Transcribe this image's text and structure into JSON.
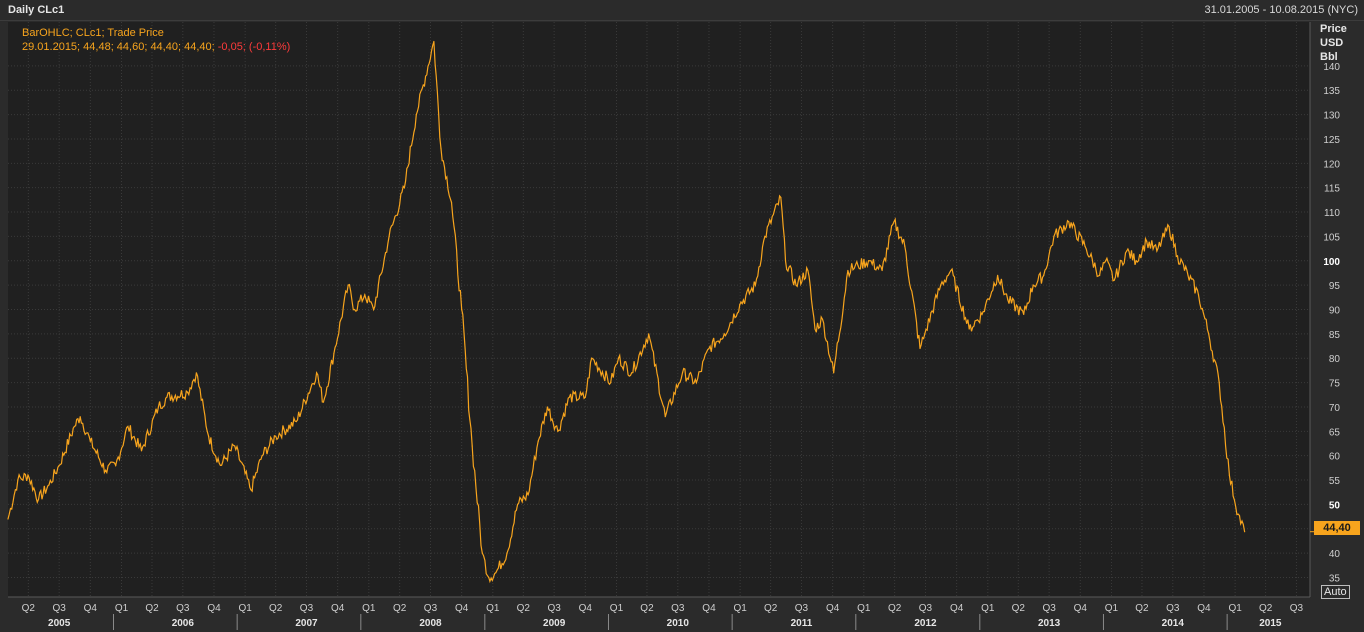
{
  "header": {
    "title": "Daily CLc1",
    "date_range": "31.01.2005 - 10.08.2015 (NYC)"
  },
  "legend": {
    "series_line": "BarOHLC; CLc1; Trade Price",
    "values_line_main": "29.01.2015; 44,48; 44,60; 44,40; 44,40; ",
    "values_line_change": "-0,05; (-0,11%)"
  },
  "axis": {
    "unit_line1": "Price",
    "unit_line2": "USD",
    "unit_line3": "Bbl",
    "auto_label": "Auto",
    "last_price_label": "44,40"
  },
  "colors": {
    "series": "#f7a41d",
    "negative": "#ff3b3b",
    "background": "#202020",
    "grid": "#3a3a3a"
  },
  "chart_data": {
    "type": "line",
    "title": "Daily CLc1",
    "ylabel": "Price USD Bbl",
    "ylim": [
      31,
      149
    ],
    "xlim": [
      "2005-01-31",
      "2015-08-10"
    ],
    "y_ticks": [
      35,
      40,
      45,
      50,
      55,
      60,
      65,
      70,
      75,
      80,
      85,
      90,
      95,
      100,
      105,
      110,
      115,
      120,
      125,
      130,
      135,
      140
    ],
    "y_ticks_bold": [
      50,
      100
    ],
    "quarter_ticks": [
      {
        "label": "Q2",
        "date": "2005-04-01"
      },
      {
        "label": "Q3",
        "date": "2005-07-01"
      },
      {
        "label": "Q4",
        "date": "2005-10-01"
      },
      {
        "label": "Q1",
        "date": "2006-01-01"
      },
      {
        "label": "Q2",
        "date": "2006-04-01"
      },
      {
        "label": "Q3",
        "date": "2006-07-01"
      },
      {
        "label": "Q4",
        "date": "2006-10-01"
      },
      {
        "label": "Q1",
        "date": "2007-01-01"
      },
      {
        "label": "Q2",
        "date": "2007-04-01"
      },
      {
        "label": "Q3",
        "date": "2007-07-01"
      },
      {
        "label": "Q4",
        "date": "2007-10-01"
      },
      {
        "label": "Q1",
        "date": "2008-01-01"
      },
      {
        "label": "Q2",
        "date": "2008-04-01"
      },
      {
        "label": "Q3",
        "date": "2008-07-01"
      },
      {
        "label": "Q4",
        "date": "2008-10-01"
      },
      {
        "label": "Q1",
        "date": "2009-01-01"
      },
      {
        "label": "Q2",
        "date": "2009-04-01"
      },
      {
        "label": "Q3",
        "date": "2009-07-01"
      },
      {
        "label": "Q4",
        "date": "2009-10-01"
      },
      {
        "label": "Q1",
        "date": "2010-01-01"
      },
      {
        "label": "Q2",
        "date": "2010-04-01"
      },
      {
        "label": "Q3",
        "date": "2010-07-01"
      },
      {
        "label": "Q4",
        "date": "2010-10-01"
      },
      {
        "label": "Q1",
        "date": "2011-01-01"
      },
      {
        "label": "Q2",
        "date": "2011-04-01"
      },
      {
        "label": "Q3",
        "date": "2011-07-01"
      },
      {
        "label": "Q4",
        "date": "2011-10-01"
      },
      {
        "label": "Q1",
        "date": "2012-01-01"
      },
      {
        "label": "Q2",
        "date": "2012-04-01"
      },
      {
        "label": "Q3",
        "date": "2012-07-01"
      },
      {
        "label": "Q4",
        "date": "2012-10-01"
      },
      {
        "label": "Q1",
        "date": "2013-01-01"
      },
      {
        "label": "Q2",
        "date": "2013-04-01"
      },
      {
        "label": "Q3",
        "date": "2013-07-01"
      },
      {
        "label": "Q4",
        "date": "2013-10-01"
      },
      {
        "label": "Q1",
        "date": "2014-01-01"
      },
      {
        "label": "Q2",
        "date": "2014-04-01"
      },
      {
        "label": "Q3",
        "date": "2014-07-01"
      },
      {
        "label": "Q4",
        "date": "2014-10-01"
      },
      {
        "label": "Q1",
        "date": "2015-01-01"
      },
      {
        "label": "Q2",
        "date": "2015-04-01"
      },
      {
        "label": "Q3",
        "date": "2015-07-01"
      }
    ],
    "year_ticks": [
      {
        "label": "2005",
        "date": "2005-07-01"
      },
      {
        "label": "2006",
        "date": "2006-07-01"
      },
      {
        "label": "2007",
        "date": "2007-07-01"
      },
      {
        "label": "2008",
        "date": "2008-07-01"
      },
      {
        "label": "2009",
        "date": "2009-07-01"
      },
      {
        "label": "2010",
        "date": "2010-07-01"
      },
      {
        "label": "2011",
        "date": "2011-07-01"
      },
      {
        "label": "2012",
        "date": "2012-07-01"
      },
      {
        "label": "2013",
        "date": "2013-07-01"
      },
      {
        "label": "2014",
        "date": "2014-07-01"
      },
      {
        "label": "2015",
        "date": "2015-04-15"
      }
    ],
    "series": [
      {
        "name": "BarOHLC; CLc1; Trade Price",
        "x": [
          "2005-01-31",
          "2005-03-01",
          "2005-03-31",
          "2005-05-01",
          "2005-06-01",
          "2005-07-01",
          "2005-08-15",
          "2005-09-01",
          "2005-10-01",
          "2005-11-15",
          "2005-12-15",
          "2006-01-20",
          "2006-03-01",
          "2006-04-20",
          "2006-05-15",
          "2006-07-15",
          "2006-08-10",
          "2006-09-15",
          "2006-10-20",
          "2006-12-01",
          "2007-01-18",
          "2007-02-20",
          "2007-04-01",
          "2007-06-01",
          "2007-07-31",
          "2007-08-20",
          "2007-09-20",
          "2007-11-01",
          "2007-11-20",
          "2007-12-20",
          "2008-01-15",
          "2008-03-01",
          "2008-04-15",
          "2008-05-20",
          "2008-07-11",
          "2008-08-01",
          "2008-09-01",
          "2008-10-01",
          "2008-11-01",
          "2008-12-01",
          "2008-12-20",
          "2009-01-10",
          "2009-02-12",
          "2009-03-15",
          "2009-04-15",
          "2009-05-15",
          "2009-06-11",
          "2009-07-12",
          "2009-08-15",
          "2009-10-01",
          "2009-10-20",
          "2009-12-15",
          "2010-01-07",
          "2010-02-15",
          "2010-04-06",
          "2010-05-25",
          "2010-07-15",
          "2010-08-25",
          "2010-10-01",
          "2010-11-15",
          "2010-12-31",
          "2011-02-15",
          "2011-03-15",
          "2011-05-01",
          "2011-05-15",
          "2011-06-15",
          "2011-07-20",
          "2011-08-10",
          "2011-09-01",
          "2011-10-04",
          "2011-11-15",
          "2011-12-15",
          "2012-01-15",
          "2012-02-24",
          "2012-03-30",
          "2012-05-01",
          "2012-06-15",
          "2012-06-29",
          "2012-08-15",
          "2012-09-14",
          "2012-11-07",
          "2012-12-15",
          "2013-01-30",
          "2013-03-01",
          "2013-04-17",
          "2013-05-15",
          "2013-06-15",
          "2013-07-15",
          "2013-08-28",
          "2013-10-15",
          "2013-11-27",
          "2013-12-15",
          "2014-01-09",
          "2014-02-15",
          "2014-03-15",
          "2014-04-15",
          "2014-05-15",
          "2014-06-20",
          "2014-07-15",
          "2014-08-15",
          "2014-09-15",
          "2014-10-15",
          "2014-11-15",
          "2014-12-15",
          "2015-01-10",
          "2015-01-29"
        ],
        "values": [
          47,
          55,
          56,
          51,
          54,
          58,
          66,
          68,
          63,
          57,
          58,
          66,
          61,
          70,
          72,
          73,
          77,
          64,
          58,
          62,
          53,
          60,
          64,
          67,
          77,
          71,
          81,
          95,
          90,
          93,
          90,
          105,
          115,
          130,
          145,
          123,
          112,
          90,
          62,
          40,
          35,
          36,
          40,
          50,
          52,
          63,
          70,
          65,
          72,
          72,
          80,
          75,
          80,
          77,
          85,
          68,
          77,
          75,
          82,
          85,
          91,
          95,
          105,
          113,
          100,
          95,
          98,
          86,
          88,
          77,
          98,
          99,
          100,
          98,
          108,
          103,
          82,
          85,
          95,
          98,
          86,
          89,
          97,
          92,
          89,
          95,
          97,
          105,
          108,
          103,
          97,
          100,
          96,
          102,
          100,
          104,
          102,
          107,
          101,
          97,
          93,
          85,
          75,
          56,
          48,
          44.4
        ]
      }
    ]
  }
}
